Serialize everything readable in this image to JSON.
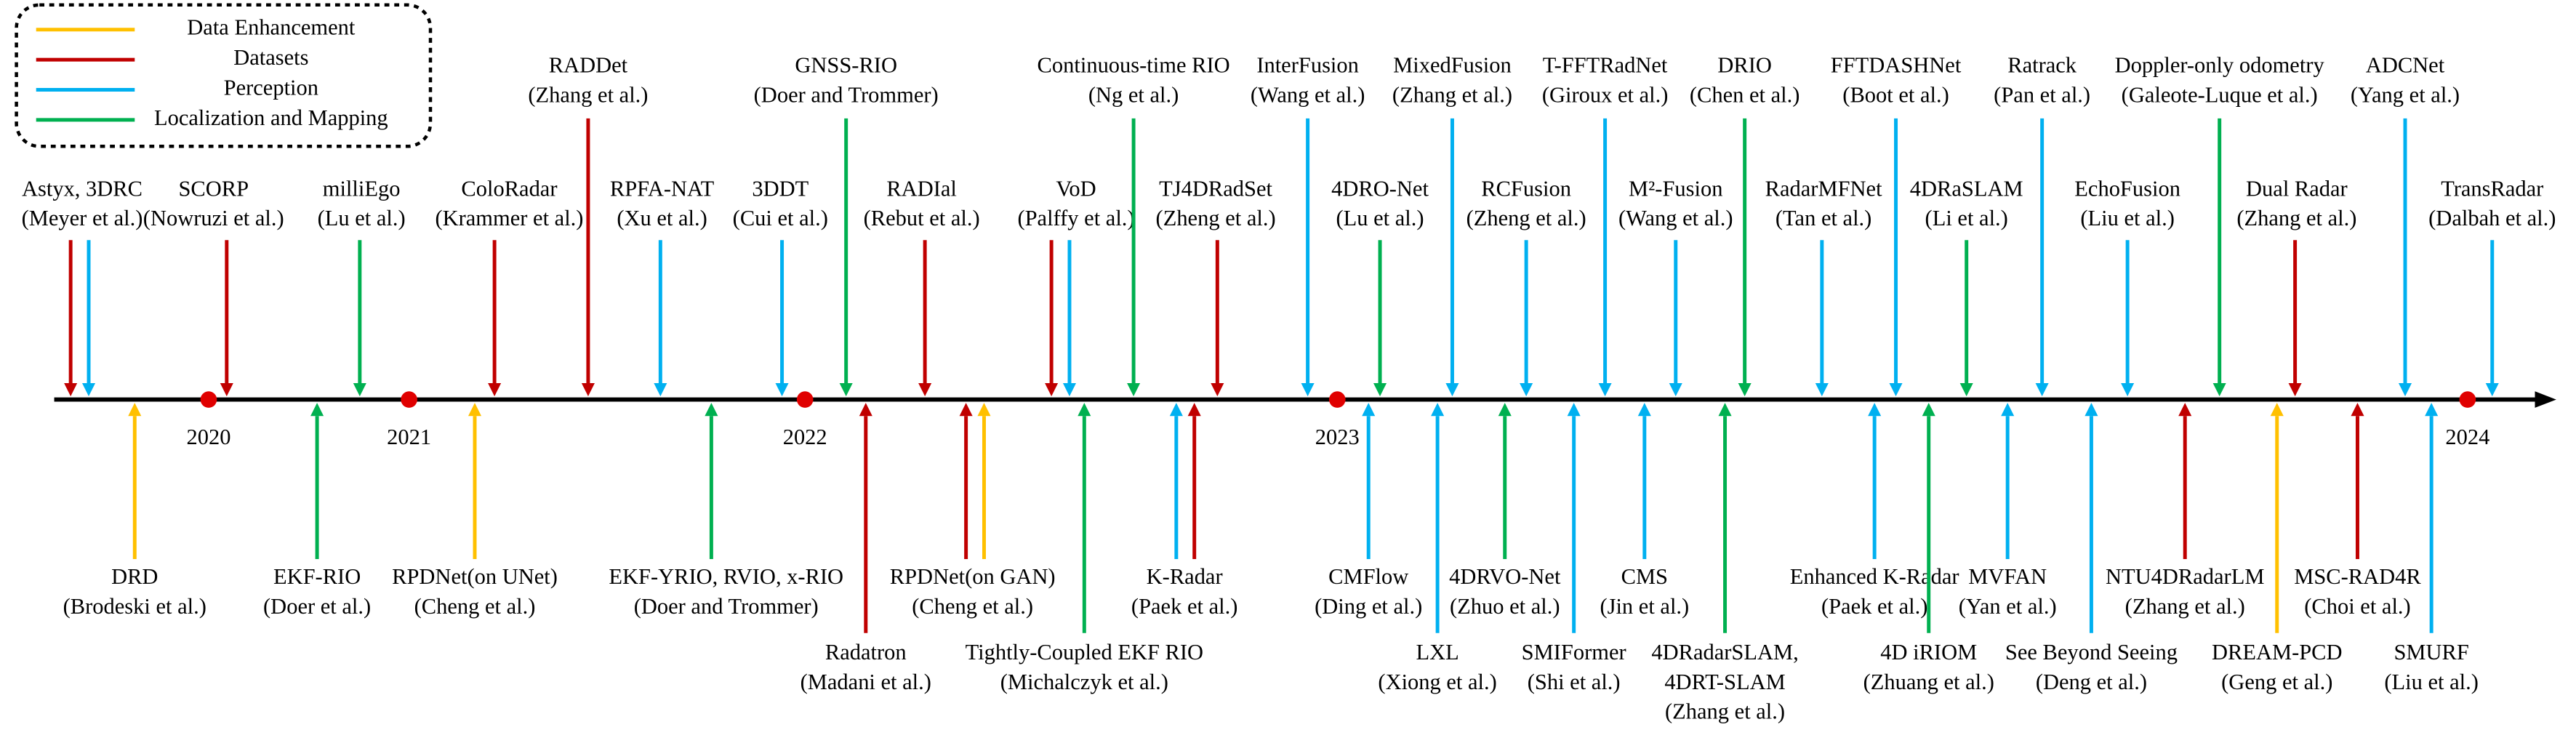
{
  "legend": [
    {
      "label": "Data Enhancement",
      "color": "#ffc000"
    },
    {
      "label": "Datasets",
      "color": "#c00000"
    },
    {
      "label": "Perception",
      "color": "#00b0f0"
    },
    {
      "label": "Localization and Mapping",
      "color": "#00b050"
    }
  ],
  "years": [
    "2020",
    "2021",
    "2022",
    "2023",
    "2024"
  ],
  "items": [
    {
      "lines": [
        "Astyx, 3DRC",
        "(Meyer et al.)"
      ],
      "categories": [
        "Datasets",
        "Perception"
      ]
    },
    {
      "lines": [
        "SCORP",
        "(Nowruzi et al.)"
      ],
      "categories": [
        "Datasets"
      ]
    },
    {
      "lines": [
        "milliEgo",
        "(Lu et al.)"
      ],
      "categories": [
        "Localization and Mapping"
      ]
    },
    {
      "lines": [
        "ColoRadar",
        "(Krammer et al.)"
      ],
      "categories": [
        "Datasets"
      ]
    },
    {
      "lines": [
        "RADDet",
        "(Zhang et al.)"
      ],
      "categories": [
        "Datasets"
      ]
    },
    {
      "lines": [
        "RPFA-NAT",
        "(Xu et al.)"
      ],
      "categories": [
        "Perception"
      ]
    },
    {
      "lines": [
        "3DDT",
        "(Cui et al.)"
      ],
      "categories": [
        "Perception"
      ]
    },
    {
      "lines": [
        "GNSS-RIO",
        "(Doer and Trommer)"
      ],
      "categories": [
        "Localization and Mapping"
      ]
    },
    {
      "lines": [
        "RADIal",
        "(Rebut et al.)"
      ],
      "categories": [
        "Datasets"
      ]
    },
    {
      "lines": [
        "VoD",
        "(Palffy et al.)"
      ],
      "categories": [
        "Datasets",
        "Perception"
      ]
    },
    {
      "lines": [
        "Continuous-time RIO",
        "(Ng et al.)"
      ],
      "categories": [
        "Localization and Mapping"
      ]
    },
    {
      "lines": [
        "TJ4DRadSet",
        "(Zheng et al.)"
      ],
      "categories": [
        "Datasets"
      ]
    },
    {
      "lines": [
        "InterFusion",
        "(Wang et al.)"
      ],
      "categories": [
        "Perception"
      ]
    },
    {
      "lines": [
        "4DRO-Net",
        "(Lu et al.)"
      ],
      "categories": [
        "Localization and Mapping"
      ]
    },
    {
      "lines": [
        "MixedFusion",
        "(Zhang et al.)"
      ],
      "categories": [
        "Perception"
      ]
    },
    {
      "lines": [
        "RCFusion",
        "(Zheng et al.)"
      ],
      "categories": [
        "Perception"
      ]
    },
    {
      "lines": [
        "T-FFTRadNet",
        "(Giroux et al.)"
      ],
      "categories": [
        "Perception"
      ]
    },
    {
      "lines": [
        "M²-Fusion",
        "(Wang et al.)"
      ],
      "categories": [
        "Perception"
      ]
    },
    {
      "lines": [
        "DRIO",
        "(Chen et al.)"
      ],
      "categories": [
        "Localization and Mapping"
      ]
    },
    {
      "lines": [
        "RadarMFNet",
        "(Tan et al.)"
      ],
      "categories": [
        "Perception"
      ]
    },
    {
      "lines": [
        "FFTDASHNet",
        "(Boot et al.)"
      ],
      "categories": [
        "Perception"
      ]
    },
    {
      "lines": [
        "4DRaSLAM",
        "(Li et al.)"
      ],
      "categories": [
        "Localization and Mapping"
      ]
    },
    {
      "lines": [
        "Ratrack",
        "(Pan et al.)"
      ],
      "categories": [
        "Perception"
      ]
    },
    {
      "lines": [
        "EchoFusion",
        "(Liu et al.)"
      ],
      "categories": [
        "Perception"
      ]
    },
    {
      "lines": [
        "Doppler-only odometry",
        "(Galeote-Luque et al.)"
      ],
      "categories": [
        "Localization and Mapping"
      ]
    },
    {
      "lines": [
        "Dual Radar",
        "(Zhang et al.)"
      ],
      "categories": [
        "Datasets"
      ]
    },
    {
      "lines": [
        "ADCNet",
        "(Yang et al.)"
      ],
      "categories": [
        "Perception"
      ]
    },
    {
      "lines": [
        "TransRadar",
        "(Dalbah et al.)"
      ],
      "categories": [
        "Perception"
      ]
    },
    {
      "lines": [
        "DRD",
        "(Brodeski et al.)"
      ],
      "categories": [
        "Data Enhancement"
      ]
    },
    {
      "lines": [
        "EKF-RIO",
        "(Doer et al.)"
      ],
      "categories": [
        "Localization and Mapping"
      ]
    },
    {
      "lines": [
        "RPDNet(on UNet)",
        "(Cheng et al.)"
      ],
      "categories": [
        "Data Enhancement"
      ]
    },
    {
      "lines": [
        "EKF-YRIO, RVIO, x-RIO",
        "(Doer and Trommer)"
      ],
      "categories": [
        "Localization and Mapping"
      ]
    },
    {
      "lines": [
        "Radatron",
        "(Madani et al.)"
      ],
      "categories": [
        "Datasets"
      ]
    },
    {
      "lines": [
        "RPDNet(on GAN)",
        "(Cheng et al.)"
      ],
      "categories": [
        "Datasets",
        "Data Enhancement"
      ]
    },
    {
      "lines": [
        "Tightly-Coupled EKF RIO",
        "(Michalczyk et al.)"
      ],
      "categories": [
        "Localization and Mapping"
      ]
    },
    {
      "lines": [
        "K-Radar",
        "(Paek et al.)"
      ],
      "categories": [
        "Perception",
        "Datasets"
      ]
    },
    {
      "lines": [
        "CMFlow",
        "(Ding et al.)"
      ],
      "categories": [
        "Perception"
      ]
    },
    {
      "lines": [
        "LXL",
        "(Xiong et al.)"
      ],
      "categories": [
        "Perception"
      ]
    },
    {
      "lines": [
        "4DRVO-Net",
        "(Zhuo et al.)"
      ],
      "categories": [
        "Localization and Mapping"
      ]
    },
    {
      "lines": [
        "SMIFormer",
        "(Shi et al.)"
      ],
      "categories": [
        "Perception"
      ]
    },
    {
      "lines": [
        "CMS",
        "(Jin et al.)"
      ],
      "categories": [
        "Perception"
      ]
    },
    {
      "lines": [
        "4DRadarSLAM,",
        "4DRT-SLAM",
        "(Zhang et al.)"
      ],
      "categories": [
        "Localization and Mapping"
      ]
    },
    {
      "lines": [
        "Enhanced K-Radar",
        "(Paek et al.)"
      ],
      "categories": [
        "Perception"
      ]
    },
    {
      "lines": [
        "4D iRIOM",
        "(Zhuang et al.)"
      ],
      "categories": [
        "Localization and Mapping"
      ]
    },
    {
      "lines": [
        "MVFAN",
        "(Yan et al.)"
      ],
      "categories": [
        "Perception"
      ]
    },
    {
      "lines": [
        "See Beyond Seeing",
        "(Deng et al.)"
      ],
      "categories": [
        "Perception"
      ]
    },
    {
      "lines": [
        "NTU4DRadarLM",
        "(Zhang et al.)"
      ],
      "categories": [
        "Datasets"
      ]
    },
    {
      "lines": [
        "DREAM-PCD",
        "(Geng et al.)"
      ],
      "categories": [
        "Data Enhancement"
      ]
    },
    {
      "lines": [
        "MSC-RAD4R",
        "(Choi et al.)"
      ],
      "categories": [
        "Datasets"
      ]
    },
    {
      "lines": [
        "SMURF",
        "(Liu et al.)"
      ],
      "categories": [
        "Perception"
      ]
    }
  ]
}
